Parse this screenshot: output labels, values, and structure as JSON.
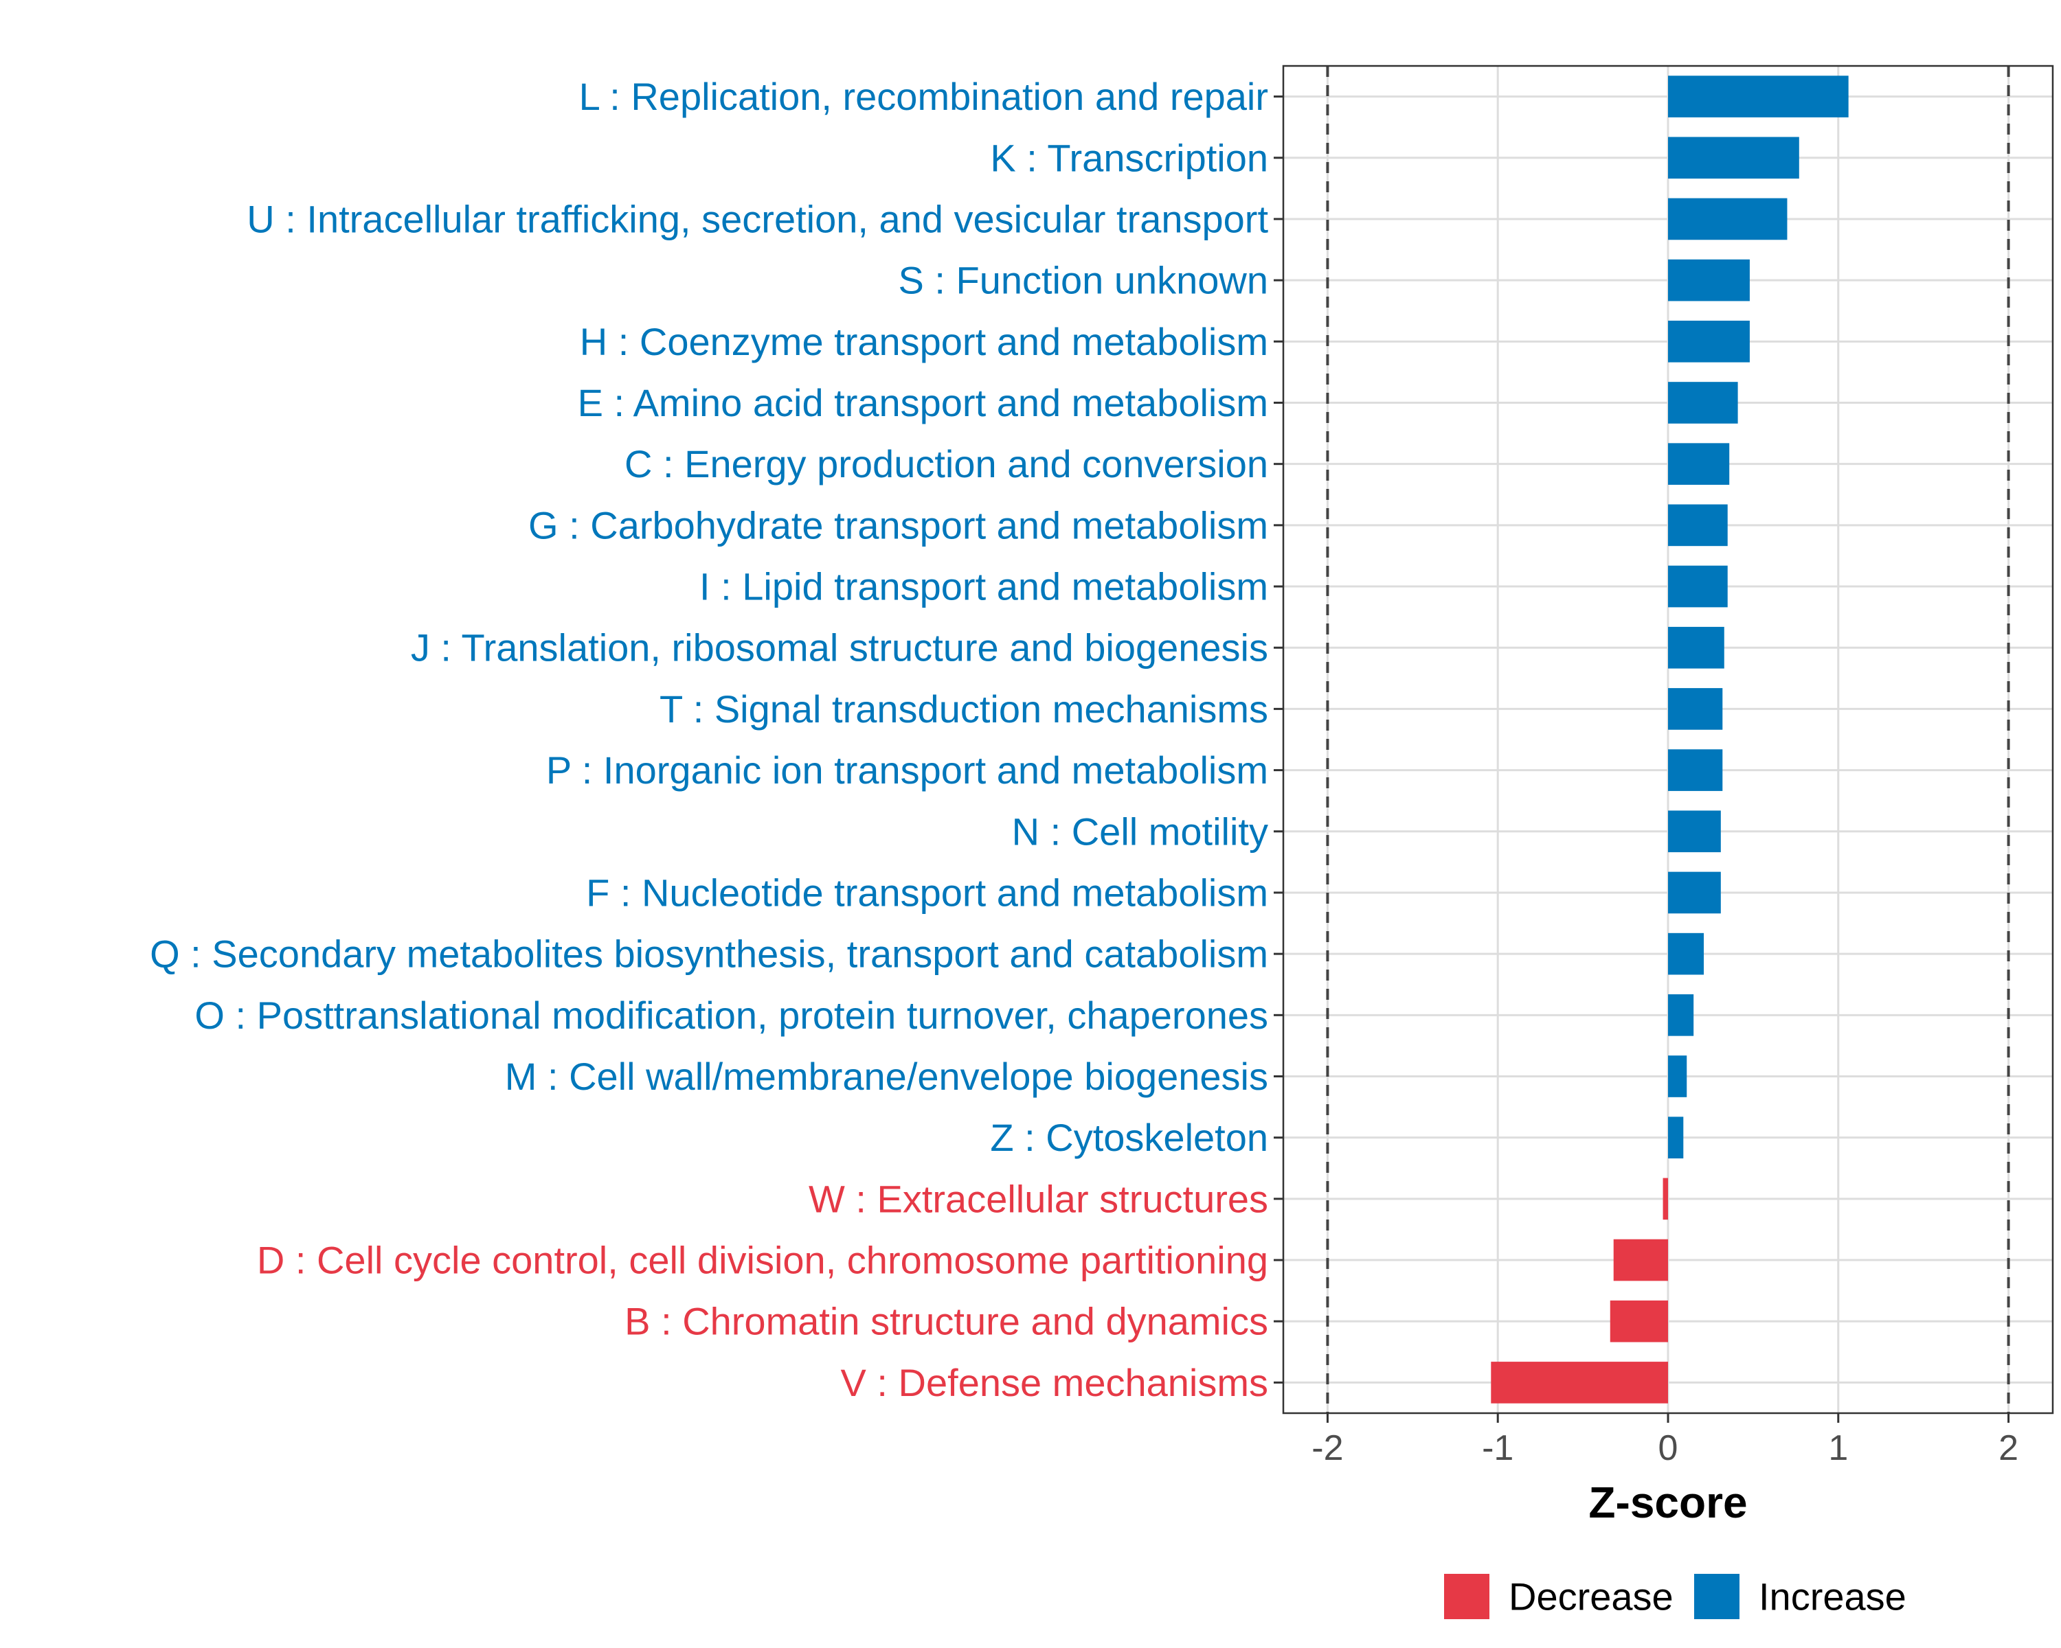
{
  "chart_data": {
    "type": "bar",
    "orientation": "horizontal",
    "xlabel": "Z-score",
    "xlim": [
      -2.26,
      2.26
    ],
    "ticks": [
      -2,
      -1,
      0,
      1,
      2
    ],
    "tick_labels": [
      "-2",
      "-1",
      "0",
      "1",
      "2"
    ],
    "threshold_lines": [
      -2,
      2
    ],
    "grid": true,
    "legend_position": "bottom",
    "colors": {
      "Decrease": "#E63946",
      "Increase": "#0077BB"
    },
    "legend": [
      {
        "label": "Decrease",
        "color": "#E63946"
      },
      {
        "label": "Increase",
        "color": "#0077BB"
      }
    ],
    "categories": [
      "L : Replication, recombination and repair",
      "K : Transcription",
      "U : Intracellular trafficking, secretion, and vesicular transport",
      "S : Function unknown",
      "H : Coenzyme transport and metabolism",
      "E : Amino acid transport and metabolism",
      "C : Energy production and conversion",
      "G : Carbohydrate transport and metabolism",
      "I : Lipid transport and metabolism",
      "J : Translation, ribosomal structure and biogenesis",
      "T : Signal transduction mechanisms",
      "P : Inorganic ion transport and metabolism",
      "N : Cell motility",
      "F : Nucleotide transport and metabolism",
      "Q : Secondary metabolites biosynthesis, transport and catabolism",
      "O : Posttranslational modification, protein turnover, chaperones",
      "M : Cell wall/membrane/envelope biogenesis",
      "Z : Cytoskeleton",
      "W : Extracellular structures",
      "D : Cell cycle control, cell division, chromosome partitioning",
      "B : Chromatin structure and dynamics",
      "V : Defense mechanisms"
    ],
    "values": [
      1.06,
      0.77,
      0.7,
      0.48,
      0.48,
      0.41,
      0.36,
      0.35,
      0.35,
      0.33,
      0.32,
      0.32,
      0.31,
      0.31,
      0.21,
      0.15,
      0.11,
      0.09,
      -0.03,
      -0.32,
      -0.34,
      -1.04
    ],
    "groups": [
      "Increase",
      "Increase",
      "Increase",
      "Increase",
      "Increase",
      "Increase",
      "Increase",
      "Increase",
      "Increase",
      "Increase",
      "Increase",
      "Increase",
      "Increase",
      "Increase",
      "Increase",
      "Increase",
      "Increase",
      "Increase",
      "Decrease",
      "Decrease",
      "Decrease",
      "Decrease"
    ]
  }
}
